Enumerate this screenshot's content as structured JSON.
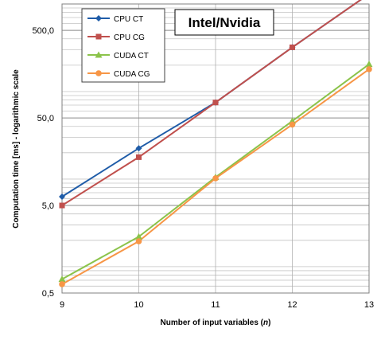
{
  "chart_data": {
    "type": "line",
    "title": "Intel/Nvidia",
    "xlabel_prefix": "Number of input variables (",
    "xlabel_var": "n",
    "xlabel_suffix": ")",
    "ylabel": "Computation time [ms] - logarithmic scale",
    "x": [
      9,
      10,
      11,
      12,
      13
    ],
    "xlim": [
      9,
      13
    ],
    "ylim": [
      0.5,
      1000
    ],
    "yscale": "log",
    "yticks": [
      0.5,
      5,
      50,
      500
    ],
    "ytick_labels": [
      "0,5",
      "5,0",
      "50,0",
      "500,0"
    ],
    "grid": true,
    "legend_position": "top-left",
    "series": [
      {
        "name": "CPU CT",
        "values": [
          6.3,
          22.5,
          75,
          320,
          1300
        ],
        "color": "#1f5ca8",
        "marker": "diamond"
      },
      {
        "name": "CPU CG",
        "values": [
          5.0,
          17.8,
          75,
          320,
          1300
        ],
        "color": "#c0504d",
        "marker": "square"
      },
      {
        "name": "CUDA CT",
        "values": [
          0.72,
          2.2,
          10.5,
          46,
          205
        ],
        "color": "#8bc34a",
        "marker": "triangle"
      },
      {
        "name": "CUDA CG",
        "values": [
          0.63,
          1.95,
          10.2,
          42,
          180
        ],
        "color": "#f79646",
        "marker": "circle"
      }
    ]
  }
}
